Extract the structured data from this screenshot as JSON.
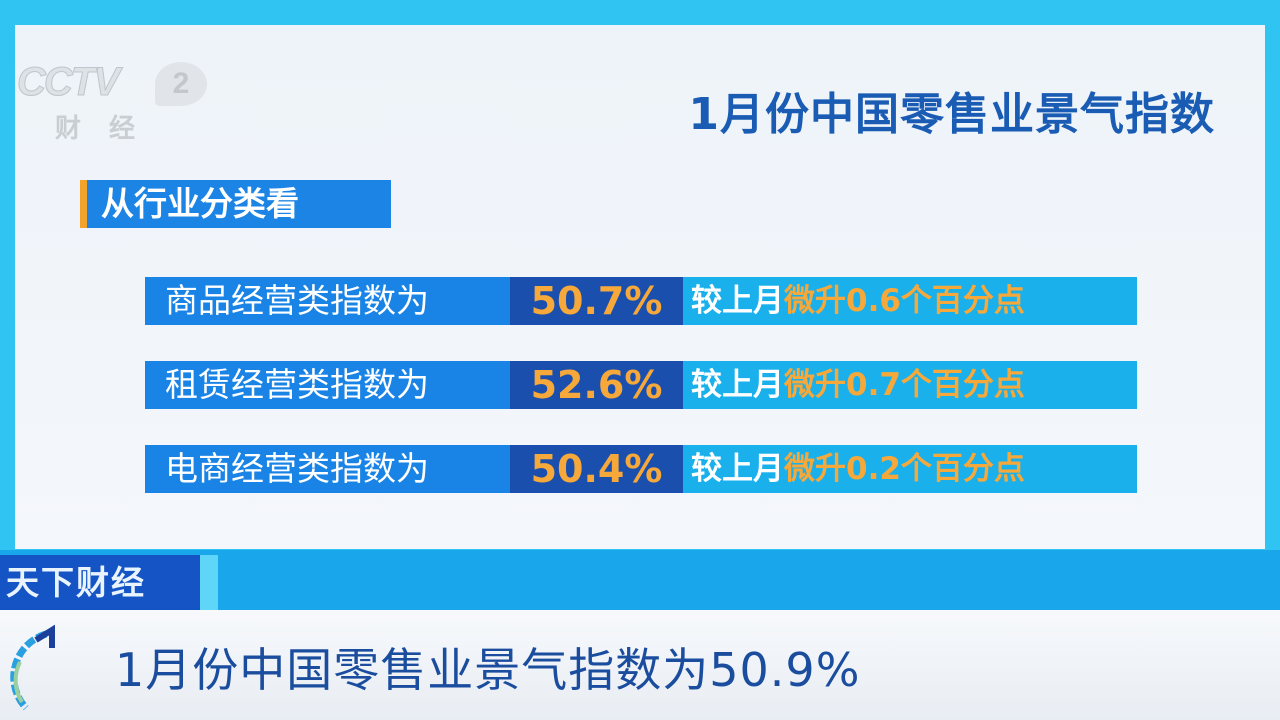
{
  "channel_logo": {
    "text": "CCTV",
    "number": "2",
    "subtitle": "财经"
  },
  "title": "1月份中国零售业景气指数",
  "section_heading": "从行业分类看",
  "rows": [
    {
      "label": "商品经营类指数为",
      "value": "50.7%",
      "compare": "较上月",
      "change": "微升0.6个百分点"
    },
    {
      "label": "租赁经营类指数为",
      "value": "52.6%",
      "compare": "较上月",
      "change": "微升0.7个百分点"
    },
    {
      "label": "电商经营类指数为",
      "value": "50.4%",
      "compare": "较上月",
      "change": "微升0.2个百分点"
    }
  ],
  "program_name": "天下财经",
  "ticker": "1月份中国零售业景气指数为50.9%",
  "colors": {
    "accent_blue": "#1a84e6",
    "dark_blue": "#1b4fae",
    "cyan": "#19b0ec",
    "highlight_orange": "#f6a93a"
  }
}
